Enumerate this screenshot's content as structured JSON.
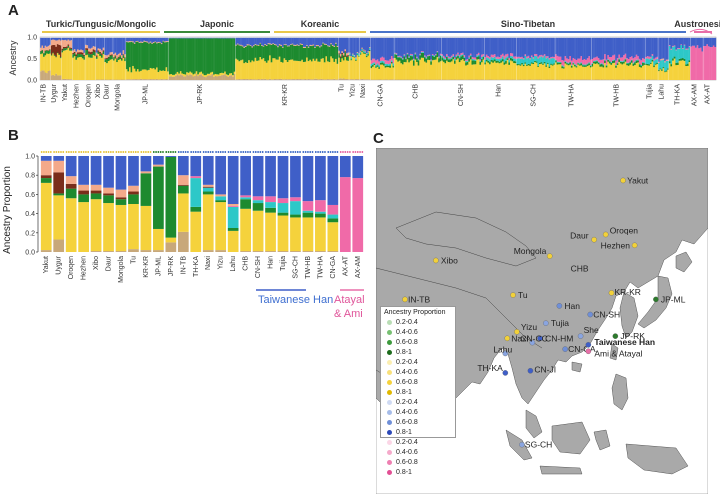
{
  "panels": {
    "a": "A",
    "b": "B",
    "c": "C"
  },
  "panel_a": {
    "y_label": "Ancestry",
    "y_ticks": [
      "1.0",
      "0.5",
      "0.0"
    ],
    "families": [
      {
        "name": "Turkic/Tungusic/Mongolic",
        "color": "#e8c84a",
        "x1": 40,
        "x2": 162
      },
      {
        "name": "Japonic",
        "color": "#3a8a3a",
        "x1": 162,
        "x2": 272
      },
      {
        "name": "Koreanic",
        "color": "#e8c84a",
        "x1": 272,
        "x2": 368
      },
      {
        "name": "Sino-Tibetan",
        "color": "#4a74c9",
        "x1": 368,
        "x2": 688
      },
      {
        "name": "Austronesian",
        "color": "#e86fa8",
        "x1": 692,
        "x2": 714
      }
    ],
    "pop_labels": [
      "IN-TB",
      "Uygur",
      "Yakut",
      "Hezhen",
      "Oroqen",
      "Xibo",
      "Daur",
      "Mongola",
      "JP-ML",
      "JP-RK",
      "KR-KR",
      "Tu",
      "Yizu",
      "Naxi",
      "CN-GA",
      "CHB",
      "CN-SH",
      "Han",
      "SG-CH",
      "TW-HA",
      "TW-HB",
      "Tujia",
      "Lahu",
      "TH-KA",
      "AX-AM",
      "AX-AT"
    ]
  },
  "chart_data": {
    "type": "bar",
    "stacked": true,
    "ylabel": "Ancestry Proportion",
    "ylim": [
      0,
      1
    ],
    "categories": [
      "Yakut",
      "Uygur",
      "Oroqen",
      "Hezhen",
      "Xibo",
      "Daur",
      "Mongola",
      "Tu",
      "KR-KR",
      "JP-ML",
      "JP-RK",
      "IN-TB",
      "TH-KA",
      "Naxi",
      "Yizu",
      "Lahu",
      "CHB",
      "CN-SH",
      "Han",
      "Tujia",
      "SG-CH",
      "TW-HB",
      "TW-HA",
      "CN-GA",
      "AX-AT",
      "AX-AM"
    ],
    "series": [
      {
        "color": "#c8a87a",
        "values": [
          0.02,
          0.13,
          0.0,
          0.0,
          0.01,
          0.01,
          0.01,
          0.03,
          0.02,
          0.02,
          0.1,
          0.21,
          0.0,
          0.02,
          0.02,
          0.0,
          0.01,
          0.01,
          0.01,
          0.01,
          0.01,
          0.01,
          0.01,
          0.01,
          0.0,
          0.0
        ]
      },
      {
        "color": "#f5d23c",
        "values": [
          0.7,
          0.46,
          0.56,
          0.52,
          0.54,
          0.5,
          0.48,
          0.47,
          0.46,
          0.22,
          0.05,
          0.4,
          0.42,
          0.58,
          0.5,
          0.22,
          0.44,
          0.42,
          0.4,
          0.37,
          0.35,
          0.35,
          0.35,
          0.3,
          0.0,
          0.0
        ]
      },
      {
        "color": "#1d8a2f",
        "values": [
          0.05,
          0.02,
          0.1,
          0.08,
          0.06,
          0.08,
          0.06,
          0.1,
          0.34,
          0.65,
          0.84,
          0.08,
          0.05,
          0.03,
          0.02,
          0.03,
          0.1,
          0.08,
          0.05,
          0.03,
          0.03,
          0.05,
          0.04,
          0.04,
          0.0,
          0.0
        ]
      },
      {
        "color": "#2dc8c8",
        "values": [
          0.0,
          0.0,
          0.0,
          0.0,
          0.0,
          0.0,
          0.0,
          0.0,
          0.0,
          0.0,
          0.0,
          0.0,
          0.3,
          0.04,
          0.04,
          0.22,
          0.02,
          0.03,
          0.06,
          0.1,
          0.14,
          0.02,
          0.02,
          0.04,
          0.0,
          0.0
        ]
      },
      {
        "color": "#f06aa8",
        "values": [
          0.0,
          0.0,
          0.0,
          0.0,
          0.0,
          0.0,
          0.0,
          0.0,
          0.0,
          0.0,
          0.0,
          0.0,
          0.02,
          0.0,
          0.0,
          0.01,
          0.02,
          0.04,
          0.06,
          0.05,
          0.04,
          0.1,
          0.12,
          0.1,
          0.78,
          0.77
        ]
      },
      {
        "color": "#7a2d1a",
        "values": [
          0.03,
          0.22,
          0.05,
          0.04,
          0.03,
          0.02,
          0.02,
          0.03,
          0.0,
          0.0,
          0.0,
          0.01,
          0.0,
          0.01,
          0.0,
          0.0,
          0.0,
          0.0,
          0.0,
          0.0,
          0.0,
          0.0,
          0.0,
          0.0,
          0.0,
          0.0
        ]
      },
      {
        "color": "#f3a98a",
        "values": [
          0.15,
          0.12,
          0.08,
          0.06,
          0.06,
          0.06,
          0.08,
          0.06,
          0.02,
          0.02,
          0.0,
          0.1,
          0.0,
          0.02,
          0.02,
          0.02,
          0.0,
          0.0,
          0.0,
          0.0,
          0.0,
          0.0,
          0.0,
          0.0,
          0.0,
          0.0
        ]
      },
      {
        "color": "#3f5fc8",
        "values": [
          0.05,
          0.05,
          0.21,
          0.3,
          0.3,
          0.33,
          0.35,
          0.31,
          0.16,
          0.09,
          0.01,
          0.2,
          0.21,
          0.3,
          0.4,
          0.5,
          0.41,
          0.42,
          0.42,
          0.44,
          0.43,
          0.47,
          0.46,
          0.51,
          0.22,
          0.23
        ]
      }
    ]
  },
  "panel_b": {
    "y_ticks": [
      "1.0",
      "0.8",
      "0.6",
      "0.4",
      "0.2",
      "0.0"
    ],
    "taiwanese_han_label": "Taiwanese Han",
    "atayal_ami_label_1": "Atayal",
    "atayal_ami_label_2": "& Ami"
  },
  "panel_c": {
    "ocean_color": "#ffffff",
    "land_color": "#a9a9a9",
    "places": [
      {
        "name": "Yakut",
        "lon": 130.0,
        "lat": 62.5,
        "color": "#f2d13a",
        "dx": 4,
        "dy": 3
      },
      {
        "name": "Oroqen",
        "lon": 125.5,
        "lat": 50.0,
        "color": "#f2d13a",
        "dx": 4,
        "dy": -1
      },
      {
        "name": "Daur",
        "lon": 122.5,
        "lat": 48.8,
        "color": "#f2d13a",
        "dx": -24,
        "dy": -1
      },
      {
        "name": "Hezhen",
        "lon": 133.0,
        "lat": 47.5,
        "color": "#f2d13a",
        "dx": -34,
        "dy": 3
      },
      {
        "name": "Mongola",
        "lon": 111.0,
        "lat": 45.0,
        "color": "#f2d13a",
        "dx": -36,
        "dy": -2
      },
      {
        "name": "Xibo",
        "lon": 81.5,
        "lat": 44.0,
        "color": "#f2d13a",
        "dx": 5,
        "dy": 3
      },
      {
        "name": "CHB",
        "lon": 116.4,
        "lat": 41.5,
        "color": null,
        "dx": 0,
        "dy": 0
      },
      {
        "name": "KR-KR",
        "lon": 127.0,
        "lat": 36.5,
        "color": "#f2d13a",
        "dx": 3,
        "dy": 2
      },
      {
        "name": "JP-ML",
        "lon": 138.5,
        "lat": 35.0,
        "color": "#2d7a2d",
        "dx": 5,
        "dy": 3
      },
      {
        "name": "IN-TB",
        "lon": 73.5,
        "lat": 35.0,
        "color": "#f2d13a",
        "dx": 3,
        "dy": 3
      },
      {
        "name": "Tu",
        "lon": 101.5,
        "lat": 36.0,
        "color": "#f2d13a",
        "dx": 5,
        "dy": 3
      },
      {
        "name": "Han",
        "lon": 113.5,
        "lat": 33.5,
        "color": "#6f8fd8",
        "dx": 5,
        "dy": 3
      },
      {
        "name": "CN-SH",
        "lon": 121.5,
        "lat": 31.5,
        "color": "#6f8fd8",
        "dx": 3,
        "dy": 3
      },
      {
        "name": "JP-RK",
        "lon": 128.0,
        "lat": 26.5,
        "color": "#2d7a2d",
        "dx": 5,
        "dy": 3
      },
      {
        "name": "Yizu",
        "lon": 102.5,
        "lat": 27.5,
        "color": "#f2d13a",
        "dx": 4,
        "dy": -2
      },
      {
        "name": "Naxi",
        "lon": 100.0,
        "lat": 26.0,
        "color": "#f2d13a",
        "dx": 4,
        "dy": 3
      },
      {
        "name": "CN-HM",
        "lon": 108.5,
        "lat": 26.0,
        "color": "#3f5fc8",
        "dx": 5,
        "dy": 3
      },
      {
        "name": "She",
        "lon": 119.0,
        "lat": 26.5,
        "color": "#8aa5e0",
        "dx": 3,
        "dy": -3
      },
      {
        "name": "Tujia",
        "lon": 110.0,
        "lat": 29.5,
        "color": "#8aa5e0",
        "dx": 5,
        "dy": 3
      },
      {
        "name": "CN-CC",
        "lon": 106.5,
        "lat": 25.0,
        "color": "#8aa5e0",
        "dx": -12,
        "dy": -1
      },
      {
        "name": "CN-GA",
        "lon": 115.0,
        "lat": 23.5,
        "color": "#6f8fd8",
        "dx": 3,
        "dy": 3
      },
      {
        "name": "Taiwanese Han",
        "lon": 121.0,
        "lat": 24.5,
        "color": "#3f5fc8",
        "dx": 6,
        "dy": 0,
        "bold": true
      },
      {
        "name": "Ami & Atayal",
        "lon": 121.0,
        "lat": 23.0,
        "color": "#e86fa8",
        "dx": 6,
        "dy": 5
      },
      {
        "name": "Lahu",
        "lon": 99.5,
        "lat": 22.5,
        "color": "#8aa5e0",
        "dx": -12,
        "dy": -1
      },
      {
        "name": "TH-KA",
        "lon": 99.5,
        "lat": 18.0,
        "color": "#3f5fc8",
        "dx": -28,
        "dy": -2
      },
      {
        "name": "CN-JI",
        "lon": 106.0,
        "lat": 18.5,
        "color": "#3f5fc8",
        "dx": 4,
        "dy": 2
      },
      {
        "name": "SG-CH",
        "lon": 103.8,
        "lat": 1.4,
        "color": "#8aa5e0",
        "dx": 3,
        "dy": 3
      }
    ],
    "legend_title": "Ancestry Proportion",
    "legend": [
      {
        "label": "0.2-0.4",
        "color": "#b9ddb5"
      },
      {
        "label": "0.4-0.6",
        "color": "#77c072"
      },
      {
        "label": "0.6-0.8",
        "color": "#3d9a3d"
      },
      {
        "label": "0.8-1",
        "color": "#1c6b1c"
      },
      {
        "label": "0.2-0.4",
        "color": "#fbeeb0"
      },
      {
        "label": "0.4-0.6",
        "color": "#f8e07a"
      },
      {
        "label": "0.6-0.8",
        "color": "#f5d23c"
      },
      {
        "label": "0.8-1",
        "color": "#e0b800"
      },
      {
        "label": "0.2-0.4",
        "color": "#cfdaf3"
      },
      {
        "label": "0.4-0.6",
        "color": "#a6bce9"
      },
      {
        "label": "0.6-0.8",
        "color": "#6f8fd8"
      },
      {
        "label": "0.8-1",
        "color": "#2c49b8"
      },
      {
        "label": "0.2-0.4",
        "color": "#fbd6e6"
      },
      {
        "label": "0.4-0.6",
        "color": "#f5aacb"
      },
      {
        "label": "0.6-0.8",
        "color": "#ee7fb1"
      },
      {
        "label": "0.8-1",
        "color": "#e24f94"
      }
    ]
  }
}
